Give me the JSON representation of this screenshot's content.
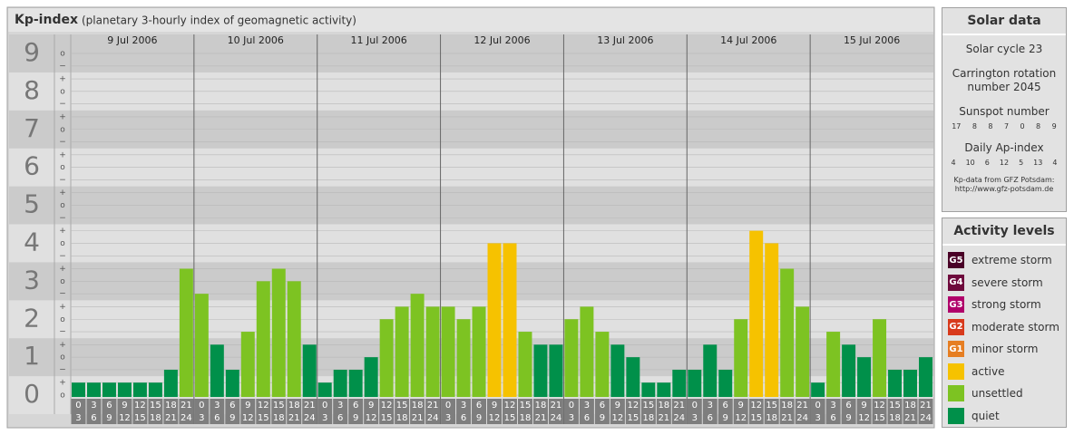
{
  "chart_data": {
    "type": "bar",
    "title": "Kp-index",
    "subtitle": "(planetary 3-hourly index of geomagnetic activity)",
    "days": [
      "9 Jul 2006",
      "10 Jul 2006",
      "11 Jul 2006",
      "12 Jul 2006",
      "13 Jul 2006",
      "14 Jul 2006",
      "15 Jul 2006"
    ],
    "time_slots": [
      [
        "0",
        "3"
      ],
      [
        "3",
        "6"
      ],
      [
        "6",
        "9"
      ],
      [
        "9",
        "12"
      ],
      [
        "12",
        "15"
      ],
      [
        "15",
        "18"
      ],
      [
        "18",
        "21"
      ],
      [
        "21",
        "24"
      ]
    ],
    "values": [
      0.33,
      0.33,
      0.33,
      0.33,
      0.33,
      0.33,
      0.67,
      3.33,
      2.67,
      1.33,
      0.67,
      1.67,
      3,
      3.33,
      3,
      1.33,
      0.33,
      0.67,
      0.67,
      1,
      2,
      2.33,
      2.67,
      2.33,
      2.33,
      2,
      2.33,
      4,
      4,
      1.67,
      1.33,
      1.33,
      2,
      2.33,
      1.67,
      1.33,
      1,
      0.33,
      0.33,
      0.67,
      0.67,
      1.33,
      0.67,
      2,
      4.33,
      4,
      3.33,
      2.33,
      0.33,
      1.67,
      1.33,
      1,
      2,
      0.67,
      0.67,
      1
    ],
    "colors": [
      "#00904a",
      "#00904a",
      "#00904a",
      "#00904a",
      "#00904a",
      "#00904a",
      "#00904a",
      "#7dc322",
      "#7dc322",
      "#00904a",
      "#00904a",
      "#7dc322",
      "#7dc322",
      "#7dc322",
      "#7dc322",
      "#00904a",
      "#00904a",
      "#00904a",
      "#00904a",
      "#00904a",
      "#7dc322",
      "#7dc322",
      "#7dc322",
      "#7dc322",
      "#7dc322",
      "#7dc322",
      "#7dc322",
      "#f6c200",
      "#f6c200",
      "#7dc322",
      "#00904a",
      "#00904a",
      "#7dc322",
      "#7dc322",
      "#7dc322",
      "#00904a",
      "#00904a",
      "#00904a",
      "#00904a",
      "#00904a",
      "#00904a",
      "#00904a",
      "#00904a",
      "#7dc322",
      "#f6c200",
      "#f6c200",
      "#7dc322",
      "#7dc322",
      "#00904a",
      "#7dc322",
      "#00904a",
      "#00904a",
      "#7dc322",
      "#00904a",
      "#00904a",
      "#00904a"
    ],
    "ylim": [
      -0.5,
      9.5
    ],
    "yticks": [
      0,
      1,
      2,
      3,
      4,
      5,
      6,
      7,
      8,
      9
    ],
    "yminorticks": [
      {
        "value": 0,
        "label": "o"
      },
      {
        "value": 0.33,
        "label": "+"
      },
      {
        "value": 0.67,
        "label": "−"
      },
      {
        "value": 1,
        "label": "o"
      },
      {
        "value": 1.33,
        "label": "+"
      },
      {
        "value": 1.67,
        "label": "−"
      },
      {
        "value": 2,
        "label": "o"
      },
      {
        "value": 2.33,
        "label": "+"
      },
      {
        "value": 2.67,
        "label": "−"
      },
      {
        "value": 3,
        "label": "o"
      },
      {
        "value": 3.33,
        "label": "+"
      },
      {
        "value": 3.67,
        "label": "−"
      },
      {
        "value": 4,
        "label": "o"
      },
      {
        "value": 4.33,
        "label": "+"
      },
      {
        "value": 4.67,
        "label": "−"
      },
      {
        "value": 5,
        "label": "o"
      },
      {
        "value": 5.33,
        "label": "+"
      },
      {
        "value": 5.67,
        "label": "−"
      },
      {
        "value": 6,
        "label": "o"
      },
      {
        "value": 6.33,
        "label": "+"
      },
      {
        "value": 6.67,
        "label": "−"
      },
      {
        "value": 7,
        "label": "o"
      },
      {
        "value": 7.33,
        "label": "+"
      },
      {
        "value": 7.67,
        "label": "−"
      },
      {
        "value": 8,
        "label": "o"
      },
      {
        "value": 8.33,
        "label": "+"
      },
      {
        "value": 8.67,
        "label": "−"
      },
      {
        "value": 9,
        "label": "o"
      }
    ],
    "band_colors": [
      "#e0e0e0",
      "#cbcbcb"
    ]
  },
  "solar_data": {
    "title": "Solar data",
    "cycle": "Solar cycle 23",
    "carrington": [
      "Carrington rotation",
      "number 2045"
    ],
    "sunspot_label": "Sunspot number",
    "sunspot": [
      17,
      8,
      8,
      7,
      0,
      8,
      9
    ],
    "ap_label": "Daily Ap-index",
    "ap": [
      4,
      10,
      6,
      12,
      5,
      13,
      4
    ],
    "source": [
      "Kp-data from GFZ Potsdam:",
      "http://www.gfz-potsdam.de"
    ]
  },
  "activity_levels": {
    "title": "Activity levels",
    "items": [
      {
        "badge": "G5",
        "label": "extreme storm",
        "color": "#4a0027"
      },
      {
        "badge": "G4",
        "label": "severe storm",
        "color": "#6e0a3c"
      },
      {
        "badge": "G3",
        "label": "strong storm",
        "color": "#b0006a"
      },
      {
        "badge": "G2",
        "label": "moderate storm",
        "color": "#d83a1c"
      },
      {
        "badge": "G1",
        "label": "minor storm",
        "color": "#e67e22"
      },
      {
        "badge": null,
        "label": "active",
        "color": "#f6c200"
      },
      {
        "badge": null,
        "label": "unsettled",
        "color": "#7dc322"
      },
      {
        "badge": null,
        "label": "quiet",
        "color": "#00904a"
      }
    ]
  }
}
